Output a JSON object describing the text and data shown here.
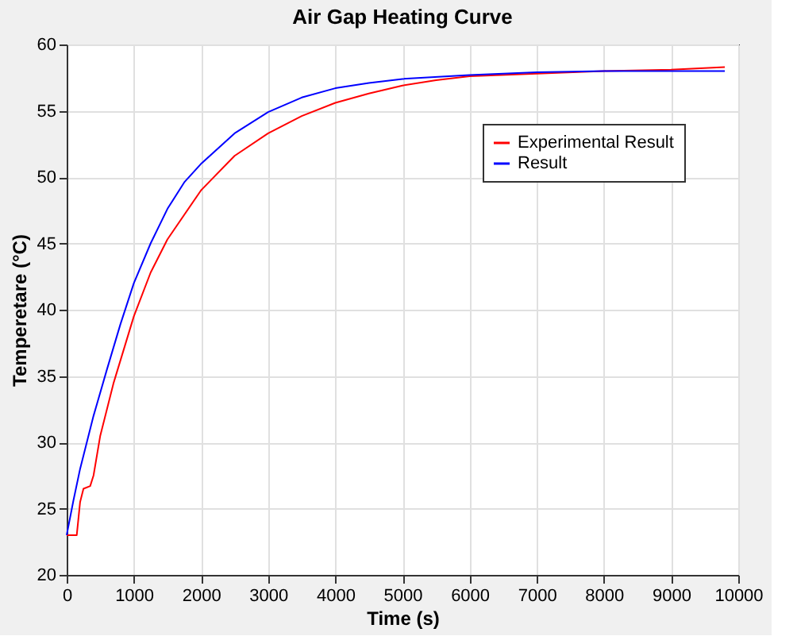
{
  "chart_data": {
    "type": "line",
    "title": "Air Gap Heating Curve",
    "xlabel": "Time (s)",
    "ylabel": "Temperetare (°C)",
    "xlim": [
      0,
      10000
    ],
    "xticks": [
      0,
      1000,
      2000,
      3000,
      4000,
      5000,
      6000,
      7000,
      8000,
      9000,
      10000
    ],
    "ylim": [
      20,
      60
    ],
    "yticks": [
      20,
      25,
      30,
      35,
      40,
      45,
      50,
      55,
      60
    ],
    "grid": true,
    "legend": "top right",
    "series": [
      {
        "name": "Experimental Result",
        "color": "#ff0000",
        "x": [
          0,
          150,
          200,
          250,
          350,
          400,
          500,
          700,
          1000,
          1250,
          1500,
          2000,
          2500,
          3000,
          3500,
          4000,
          4500,
          5000,
          5500,
          6000,
          7000,
          8000,
          9000,
          9800
        ],
        "values": [
          23,
          23,
          25.5,
          26.5,
          26.7,
          27.5,
          30.5,
          34.5,
          39.5,
          42.8,
          45.3,
          49,
          51.6,
          53.3,
          54.6,
          55.6,
          56.3,
          56.9,
          57.3,
          57.6,
          57.8,
          58,
          58.1,
          58.3
        ]
      },
      {
        "name": "Result",
        "color": "#0000ff",
        "x": [
          0,
          100,
          200,
          400,
          600,
          800,
          1000,
          1250,
          1500,
          1750,
          2000,
          2500,
          3000,
          3500,
          4000,
          4500,
          5000,
          6000,
          7000,
          8000,
          9000,
          9800
        ],
        "values": [
          23,
          25.6,
          28,
          32,
          35.5,
          38.9,
          42,
          45,
          47.6,
          49.6,
          51,
          53.3,
          54.9,
          56,
          56.7,
          57.1,
          57.4,
          57.7,
          57.9,
          58,
          58,
          58
        ]
      }
    ]
  }
}
